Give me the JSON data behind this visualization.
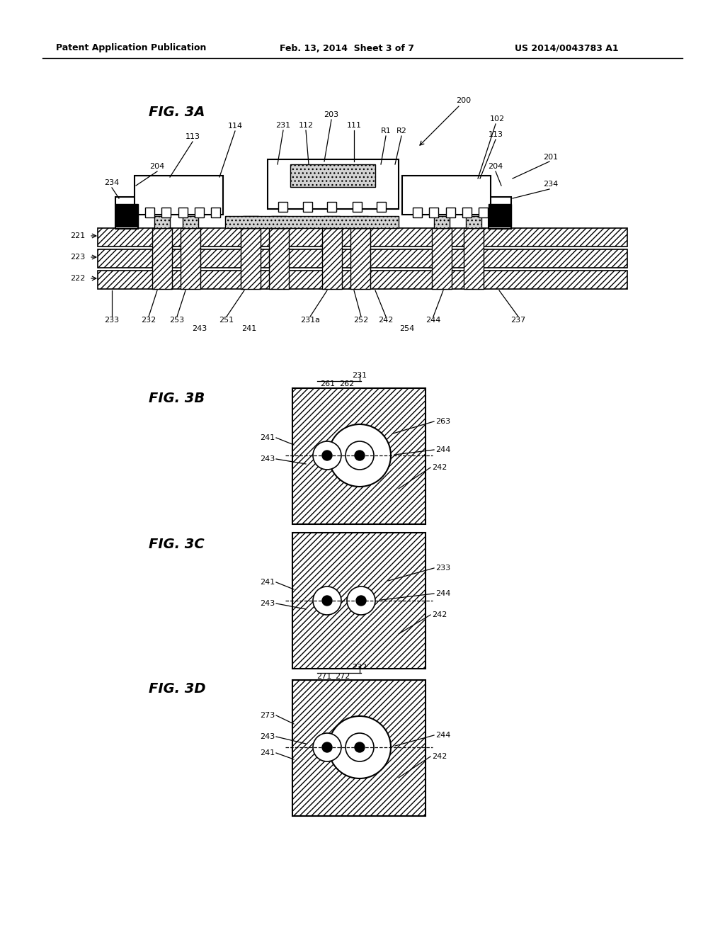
{
  "bg_color": "#ffffff",
  "header_left": "Patent Application Publication",
  "header_mid": "Feb. 13, 2014  Sheet 3 of 7",
  "header_right": "US 2014/0043783 A1",
  "fig3a_label": "FIG. 3A",
  "fig3b_label": "FIG. 3B",
  "fig3c_label": "FIG. 3C",
  "fig3d_label": "FIG. 3D"
}
